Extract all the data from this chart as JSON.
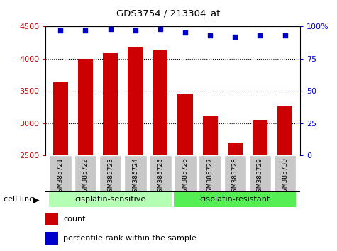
{
  "title": "GDS3754 / 213304_at",
  "samples": [
    "GSM385721",
    "GSM385722",
    "GSM385723",
    "GSM385724",
    "GSM385725",
    "GSM385726",
    "GSM385727",
    "GSM385728",
    "GSM385729",
    "GSM385730"
  ],
  "counts": [
    3630,
    4000,
    4090,
    4180,
    4140,
    3450,
    3110,
    2700,
    3050,
    3260
  ],
  "percentile_ranks": [
    97,
    97,
    98,
    97,
    98,
    95,
    93,
    92,
    93,
    93
  ],
  "ylim_left": [
    2500,
    4500
  ],
  "ylim_right": [
    0,
    100
  ],
  "yticks_left": [
    2500,
    3000,
    3500,
    4000,
    4500
  ],
  "yticks_right": [
    0,
    25,
    50,
    75,
    100
  ],
  "bar_color": "#cc0000",
  "dot_color": "#0000cc",
  "grid_color": "#000000",
  "tick_bg_color": "#c8c8c8",
  "sensitive_group": [
    0,
    1,
    2,
    3,
    4
  ],
  "resistant_group": [
    5,
    6,
    7,
    8,
    9
  ],
  "group_label_sensitive": "cisplatin-sensitive",
  "group_label_resistant": "cisplatin-resistant",
  "cell_line_label": "cell line",
  "legend_count": "count",
  "legend_percentile": "percentile rank within the sample",
  "sensitive_color": "#b3ffb3",
  "resistant_color": "#55ee55",
  "group_bg_color": "#c8c8c8"
}
